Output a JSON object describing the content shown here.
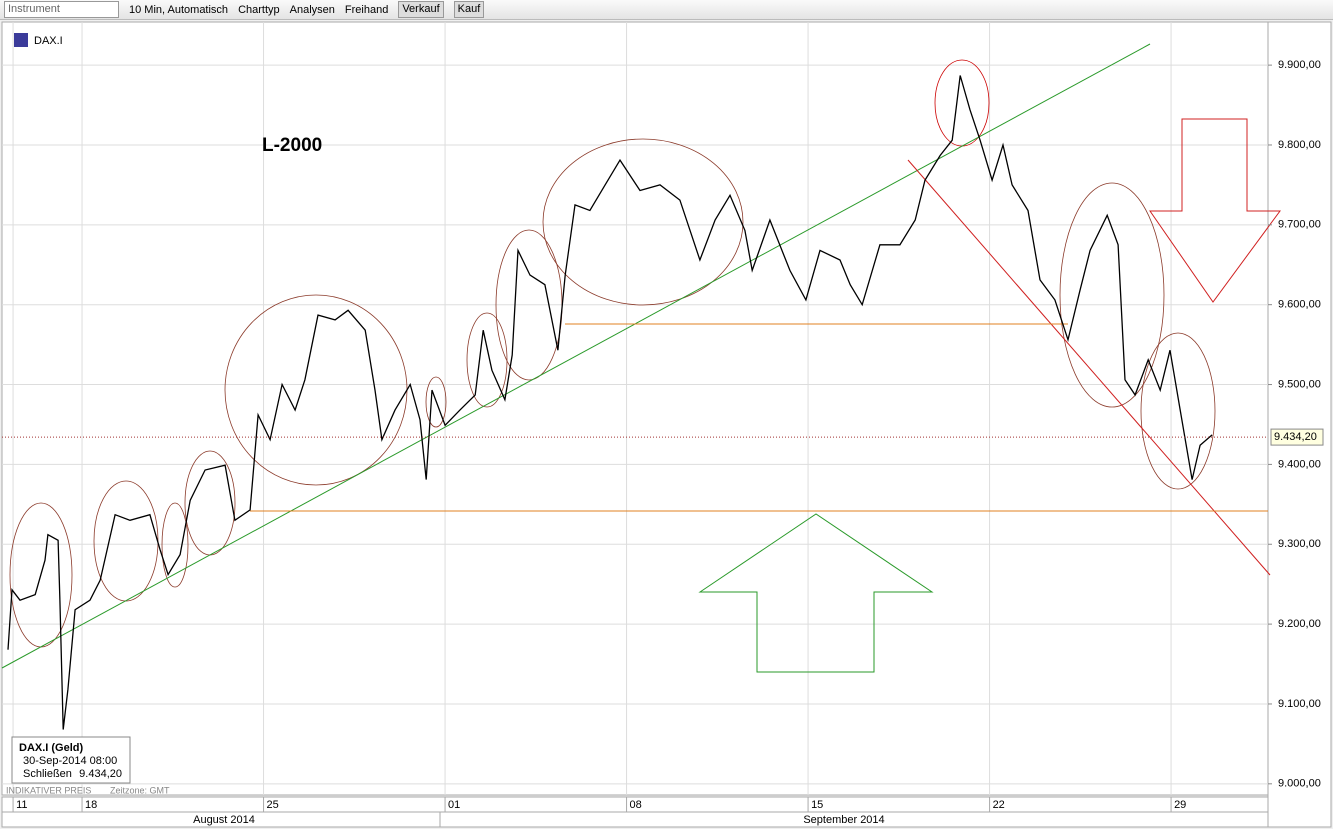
{
  "toolbar": {
    "instrument_placeholder": "Instrument",
    "interval": "10 Min,  Automatisch",
    "chart_type": "Charttyp",
    "analyses": "Analysen",
    "freehand": "Freihand",
    "sell": "Verkauf",
    "buy": "Kauf"
  },
  "chart_data": {
    "type": "line",
    "title": "DAX.I",
    "annotation": "L-2000",
    "color": "#000000",
    "grid": true,
    "x": [
      -2.04,
      -1.93,
      -1.71,
      -1.29,
      -1.02,
      -0.94,
      -0.66,
      -0.61,
      -0.52,
      -0.39,
      -0.19,
      0.22,
      0.5,
      0.91,
      1.32,
      1.87,
      2.15,
      2.37,
      2.7,
      2.98,
      3.39,
      3.94,
      4.21,
      4.63,
      4.85,
      5.18,
      5.51,
      5.87,
      6.14,
      6.5,
      6.97,
      7.33,
      7.8,
      8.07,
      8.26,
      8.62,
      9.04,
      9.31,
      9.48,
      9.64,
      10.0,
      10.41,
      10.83,
      11.05,
      11.29,
      11.65,
      11.85,
      12.01,
      12.34,
      12.75,
      13.11,
      13.31,
      13.58,
      13.99,
      14.41,
      14.82,
      15.37,
      15.92,
      16.47,
      17.02,
      17.44,
      17.85,
      18.26,
      18.46,
      18.95,
      19.5,
      19.94,
      20.33,
      20.88,
      21.16,
      21.49,
      21.98,
      22.53,
      22.95,
      23.22,
      23.64,
      23.97,
      24.19,
      24.46,
      24.74,
      25.07,
      25.37,
      25.62,
      26.06,
      26.39,
      26.8,
      27.16,
      27.49,
      27.77,
      28.24,
      28.54,
      28.73,
      29.01,
      29.37,
      29.7,
      29.97,
      30.25,
      30.58,
      30.8,
      31.13
    ],
    "values": [
      9168,
      9243,
      9230,
      9237,
      9280,
      9312,
      9305,
      9230,
      9068,
      9118,
      9218,
      9230,
      9255,
      9337,
      9330,
      9337,
      9293,
      9262,
      9287,
      9355,
      9393,
      9399,
      9330,
      9343,
      9462,
      9431,
      9500,
      9468,
      9506,
      9587,
      9581,
      9593,
      9568,
      9493,
      9431,
      9468,
      9500,
      9456,
      9381,
      9493,
      9449,
      9468,
      9487,
      9568,
      9518,
      9481,
      9537,
      9668,
      9637,
      9625,
      9543,
      9637,
      9725,
      9718,
      9750,
      9781,
      9743,
      9750,
      9731,
      9656,
      9706,
      9737,
      9693,
      9643,
      9706,
      9643,
      9606,
      9668,
      9656,
      9625,
      9600,
      9675,
      9675,
      9706,
      9756,
      9787,
      9806,
      9887,
      9844,
      9806,
      9756,
      9800,
      9750,
      9718,
      9631,
      9606,
      9556,
      9618,
      9668,
      9712,
      9675,
      9506,
      9487,
      9531,
      9493,
      9543,
      9468,
      9381,
      9424,
      9437
    ],
    "xlim": [
      -2.26,
      32.67
    ],
    "xticks": [
      {
        "value": -1.9,
        "label": "11"
      },
      {
        "value": 0,
        "label": "18"
      },
      {
        "value": 5,
        "label": "25"
      },
      {
        "value": 10,
        "label": "01"
      },
      {
        "value": 15,
        "label": "08"
      },
      {
        "value": 20,
        "label": "15"
      },
      {
        "value": 25,
        "label": "22"
      },
      {
        "value": 30,
        "label": "29"
      }
    ],
    "months": [
      "August 2014",
      "September 2014"
    ],
    "ylim": [
      8986,
      9954
    ],
    "yticks": [
      {
        "value": 9000,
        "label": "9.000,00"
      },
      {
        "value": 9100,
        "label": "9.100,00"
      },
      {
        "value": 9200,
        "label": "9.200,00"
      },
      {
        "value": 9300,
        "label": "9.300,00"
      },
      {
        "value": 9400,
        "label": "9.400,00"
      },
      {
        "value": 9500,
        "label": "9.500,00"
      },
      {
        "value": 9600,
        "label": "9.600,00"
      },
      {
        "value": 9700,
        "label": "9.700,00"
      },
      {
        "value": 9800,
        "label": "9.800,00"
      },
      {
        "value": 9900,
        "label": "9.900,00"
      }
    ],
    "last_price": {
      "value": 9434.2,
      "label": "9.434,20"
    }
  },
  "info_box": {
    "title": "DAX.I (Geld)",
    "date": "30-Sep-2014 08:00",
    "close_label": "Schließen",
    "close_value": "9.434,20"
  },
  "footer": {
    "price_note": "INDIKATIVER PREIS",
    "timezone": "Zeitzone: GMT"
  }
}
